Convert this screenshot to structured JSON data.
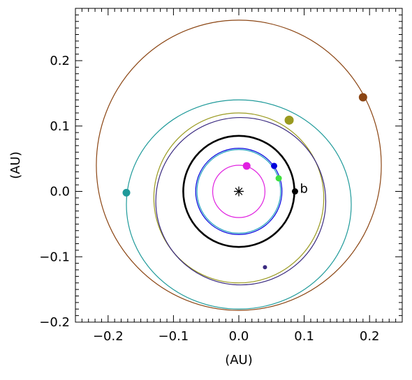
{
  "chart_data": {
    "type": "scatter",
    "xlabel": "(AU)",
    "ylabel": "(AU)",
    "xlim": [
      -0.25,
      0.25
    ],
    "ylim": [
      -0.2,
      0.28
    ],
    "x_ticks": [
      -0.2,
      -0.1,
      0.0,
      0.1,
      0.2
    ],
    "x_tick_labels": [
      "−0.2",
      "−0.1",
      "0.0",
      "0.1",
      "0.2"
    ],
    "y_ticks": [
      -0.2,
      -0.1,
      0.0,
      0.1,
      0.2
    ],
    "y_tick_labels": [
      "−0.2",
      "−0.1",
      "0.0",
      "0.1",
      "0.2"
    ],
    "grid": false,
    "star": {
      "x": 0,
      "y": 0,
      "marker": "asterisk"
    },
    "orbits": [
      {
        "color": "#8b4513",
        "cx": 0.0,
        "cy": 0.04,
        "rx": 0.218,
        "ry": 0.222,
        "stroke": 1.2,
        "planet": {
          "x": 0.19,
          "y": 0.144,
          "size": 6
        }
      },
      {
        "color": "#1f9a9a",
        "cx": 0.0,
        "cy": 0.0,
        "rx": 0.172,
        "ry": 0.16,
        "offset_y": -0.02,
        "stroke": 1.2,
        "planet": {
          "x": -0.172,
          "y": -0.002,
          "size": 5.5
        }
      },
      {
        "color": "#9a9a20",
        "cx": 0.0,
        "cy": -0.01,
        "rx": 0.13,
        "ry": 0.13,
        "stroke": 1.2,
        "planet": {
          "x": 0.077,
          "y": 0.109,
          "size": 6.5
        }
      },
      {
        "color": "#3a2a80",
        "cx": 0.003,
        "cy": -0.015,
        "rx": 0.13,
        "ry": 0.128,
        "stroke": 1.2,
        "planet": {
          "x": 0.04,
          "y": -0.116,
          "size": 3
        }
      },
      {
        "color": "#e00000",
        "cx": 0.0,
        "cy": 0.0,
        "rx": 0.085,
        "ry": 0.085,
        "stroke": 1.2,
        "planet": null
      },
      {
        "color": "#000000",
        "cx": 0.0,
        "cy": 0.0,
        "rx": 0.085,
        "ry": 0.085,
        "stroke": 2.6,
        "planet": {
          "x": 0.086,
          "y": 0.0,
          "size": 4.5
        },
        "label": "b"
      },
      {
        "color": "#0000dd",
        "cx": 0.0,
        "cy": 0.0,
        "rx": 0.066,
        "ry": 0.066,
        "stroke": 1.2,
        "planet": {
          "x": 0.054,
          "y": 0.039,
          "size": 4.5
        }
      },
      {
        "color": "#20a0c0",
        "cx": 0.0,
        "cy": 0.0,
        "rx": 0.064,
        "ry": 0.064,
        "stroke": 1.2,
        "planet": {
          "x": 0.061,
          "y": 0.02,
          "size": 4.5,
          "fill": "#40e040"
        }
      },
      {
        "color": "#e020e0",
        "cx": 0.0,
        "cy": 0.0,
        "rx": 0.04,
        "ry": 0.04,
        "stroke": 1.2,
        "planet": {
          "x": 0.012,
          "y": 0.039,
          "size": 5.5
        }
      }
    ]
  }
}
